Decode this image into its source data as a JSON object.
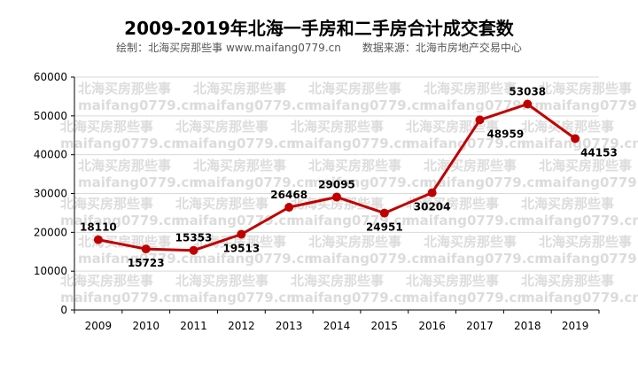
{
  "header": {
    "title": "2009-2019年北海一手房和二手房合计成交套数",
    "credit": "绘制：北海买房那些事 www.maifang0779.cn",
    "source": "数据来源：北海市房地产交易中心"
  },
  "colors": {
    "series": "#c00000",
    "grid": "#d9d9d9",
    "axis": "#000000"
  },
  "watermark": {
    "cn": "北海买房那些事",
    "en": "maifang0779.cn"
  },
  "chart_data": {
    "type": "line",
    "categories": [
      "2009",
      "2010",
      "2011",
      "2012",
      "2013",
      "2014",
      "2015",
      "2016",
      "2017",
      "2018",
      "2019"
    ],
    "series": [
      {
        "values": [
          18110,
          15723,
          15353,
          19513,
          26468,
          29095,
          24951,
          30204,
          48959,
          53038,
          44153
        ]
      }
    ],
    "ylim": [
      0,
      60000
    ],
    "yticks": [
      0,
      10000,
      20000,
      30000,
      40000,
      50000,
      60000
    ],
    "grid": "horizontal",
    "legend": "none",
    "data_labels": true
  }
}
